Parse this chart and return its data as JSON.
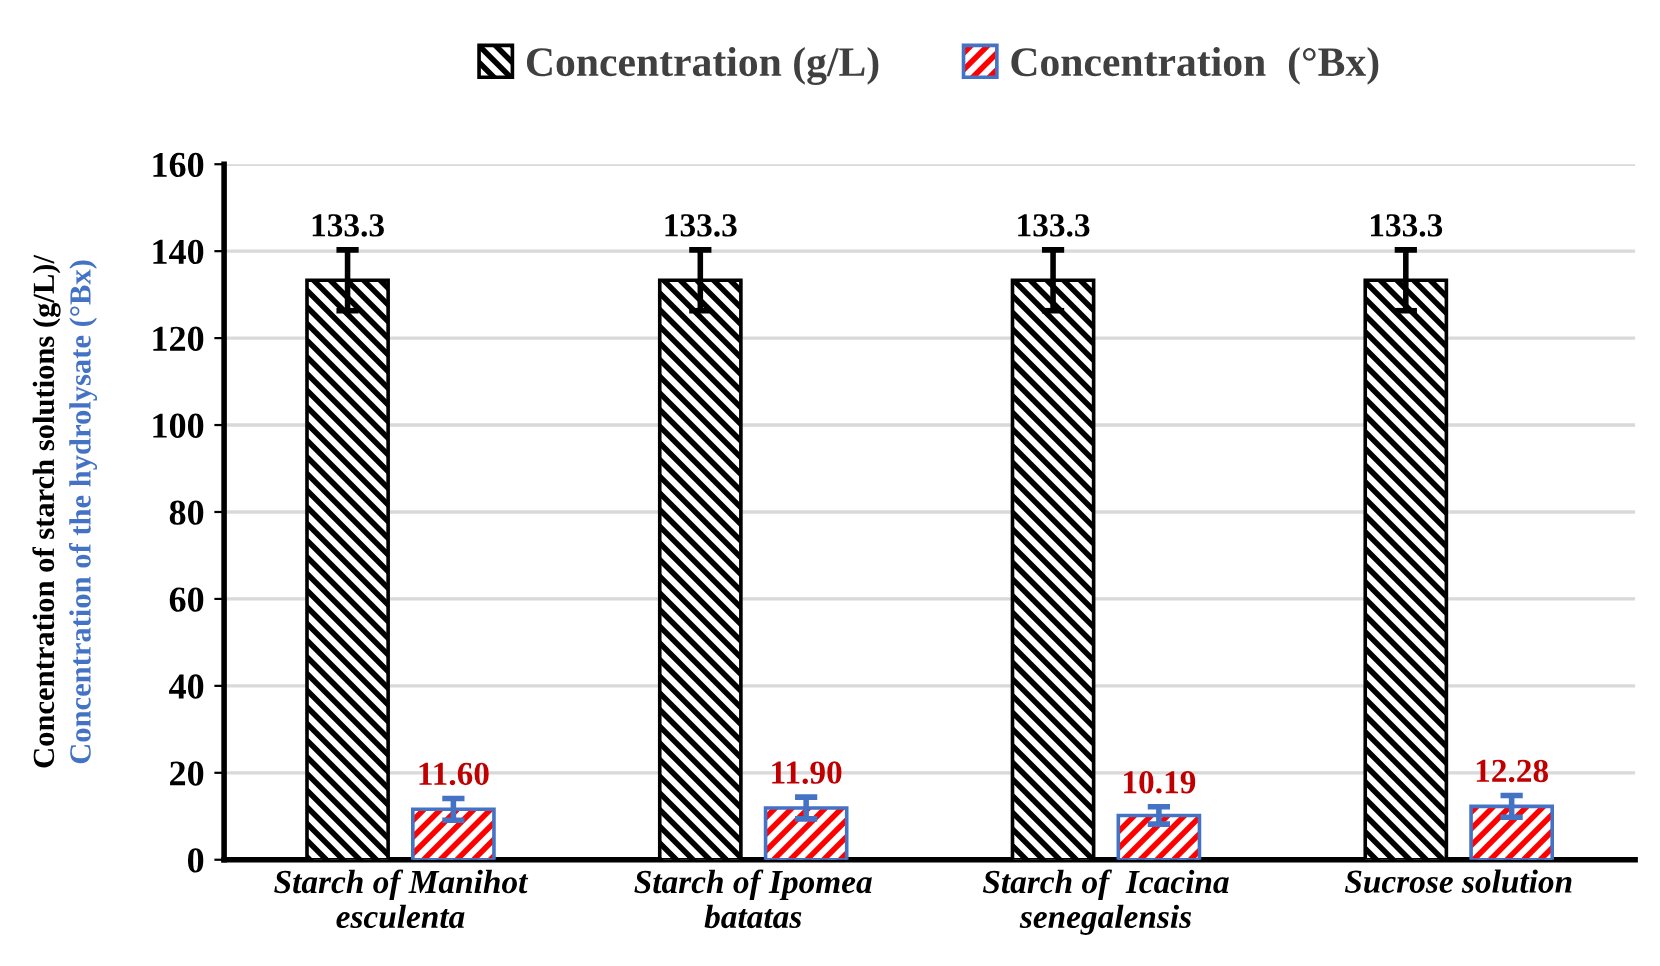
{
  "chart_data": {
    "type": "bar",
    "ylabel": "Concentration of starch solutions (g/L)/\nConcentration of the hydrolysate (°Bx)",
    "categories": [
      "Starch of Manihot\nesculenta",
      "Starch of Ipomea\nbatatas",
      "Starch of  Icacina\nsenegalensis",
      "Sucrose solution"
    ],
    "series": [
      {
        "name": "Concentration (g/L)",
        "color": "#000000",
        "values": [
          133.3,
          133.3,
          133.3,
          133.3
        ],
        "errors": [
          7,
          7,
          7,
          7
        ],
        "value_labels": [
          "133.3",
          "133.3",
          "133.3",
          "133.3"
        ]
      },
      {
        "name": "Concentration  (°Bx)",
        "color": "#ff0000",
        "values": [
          11.6,
          11.9,
          10.19,
          12.28
        ],
        "errors": [
          2.5,
          2.5,
          2,
          2.5
        ],
        "value_labels": [
          "11.60",
          "11.90",
          "10.19",
          "12.28"
        ]
      }
    ],
    "ylim": [
      0,
      160
    ],
    "yticks": [
      0,
      20,
      40,
      60,
      80,
      100,
      120,
      140,
      160
    ],
    "grid": "y",
    "legend": "top"
  }
}
